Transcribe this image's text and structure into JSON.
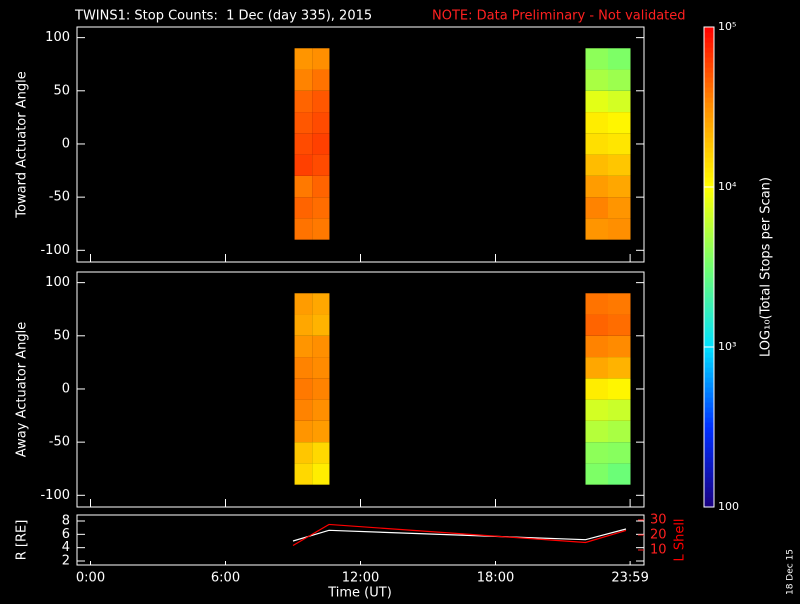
{
  "title": "TWINS1: Stop Counts:  1 Dec (day 335), 2015",
  "note": "NOTE: Data Preliminary - Not validated",
  "xlabel": "Time (UT)",
  "xlim": [
    -0.6,
    24.6
  ],
  "xticks": [
    {
      "value": 0,
      "label": "0:00"
    },
    {
      "value": 6,
      "label": "6:00"
    },
    {
      "value": 12,
      "label": "12:00"
    },
    {
      "value": 18,
      "label": "18:00"
    },
    {
      "value": 23.983,
      "label": "23:59"
    }
  ],
  "stamp": "18 Dec 15",
  "colorbar": {
    "label": "LOG₁₀(Total Stops per Scan)",
    "log": true,
    "clim": [
      100,
      100000
    ],
    "ticks": [
      100,
      {
        "value": 1000,
        "label": "10³"
      },
      {
        "value": 10000,
        "label": "10⁴"
      },
      {
        "value": 100000,
        "label": "10⁵"
      }
    ],
    "colormap": [
      "#1a0080",
      "#0030ff",
      "#00e0ff",
      "#70ff70",
      "#ffff00",
      "#ff9000",
      "#ff0000"
    ]
  },
  "chart_data": [
    {
      "type": "heatmap",
      "ylabel": "Toward Actuator Angle",
      "ylim": [
        -111,
        110
      ],
      "yticks": [
        -100,
        -50,
        0,
        50,
        100
      ],
      "x_start": [
        9.07,
        9.85,
        22.0,
        23.0
      ],
      "x_end": [
        9.85,
        10.62,
        23.0,
        24.0
      ],
      "y_edges": [
        -90,
        -70,
        -50,
        -30,
        -10,
        10,
        30,
        50,
        70,
        90
      ],
      "z": [
        [
          40000,
          45000,
          38000,
          60000,
          55000,
          50000,
          45000,
          35000,
          30000
        ],
        [
          38000,
          42000,
          45000,
          55000,
          60000,
          55000,
          50000,
          40000,
          32000
        ],
        [
          30000,
          35000,
          28000,
          20000,
          14000,
          12000,
          8000,
          5000,
          4000
        ],
        [
          32000,
          30000,
          25000,
          18000,
          13000,
          11000,
          7000,
          4500,
          3500
        ]
      ]
    },
    {
      "type": "heatmap",
      "ylabel": "Away Actuator Angle",
      "ylim": [
        -111,
        110
      ],
      "yticks": [
        -100,
        -50,
        0,
        50,
        100
      ],
      "x_start": [
        9.07,
        9.85,
        22.0,
        23.0
      ],
      "x_end": [
        9.85,
        10.62,
        23.0,
        24.0
      ],
      "y_edges": [
        -90,
        -70,
        -50,
        -30,
        -10,
        10,
        30,
        50,
        70,
        90
      ],
      "z": [
        [
          15000,
          18000,
          30000,
          35000,
          38000,
          35000,
          30000,
          25000,
          28000
        ],
        [
          12000,
          15000,
          28000,
          32000,
          35000,
          33000,
          32000,
          22000,
          25000
        ],
        [
          3500,
          4000,
          5500,
          7000,
          12000,
          25000,
          35000,
          45000,
          40000
        ],
        [
          3000,
          3800,
          5000,
          6500,
          11000,
          22000,
          33000,
          42000,
          38000
        ]
      ]
    },
    {
      "type": "line",
      "ylim": [
        1.4,
        8.9
      ],
      "yticks": [
        2,
        4,
        6,
        8
      ],
      "y2lim": [
        0,
        33.3
      ],
      "y2ticks": [
        10,
        20,
        30
      ],
      "x": [
        9.0,
        10.6,
        22.0,
        23.8
      ],
      "series": [
        {
          "name": "R [RE]",
          "color": "#ffffff",
          "values": [
            5.0,
            6.6,
            5.2,
            6.8
          ]
        },
        {
          "name": "L Shell",
          "color": "#ff0000",
          "axis": "y2",
          "values": [
            13,
            27,
            15,
            23
          ]
        }
      ]
    }
  ]
}
